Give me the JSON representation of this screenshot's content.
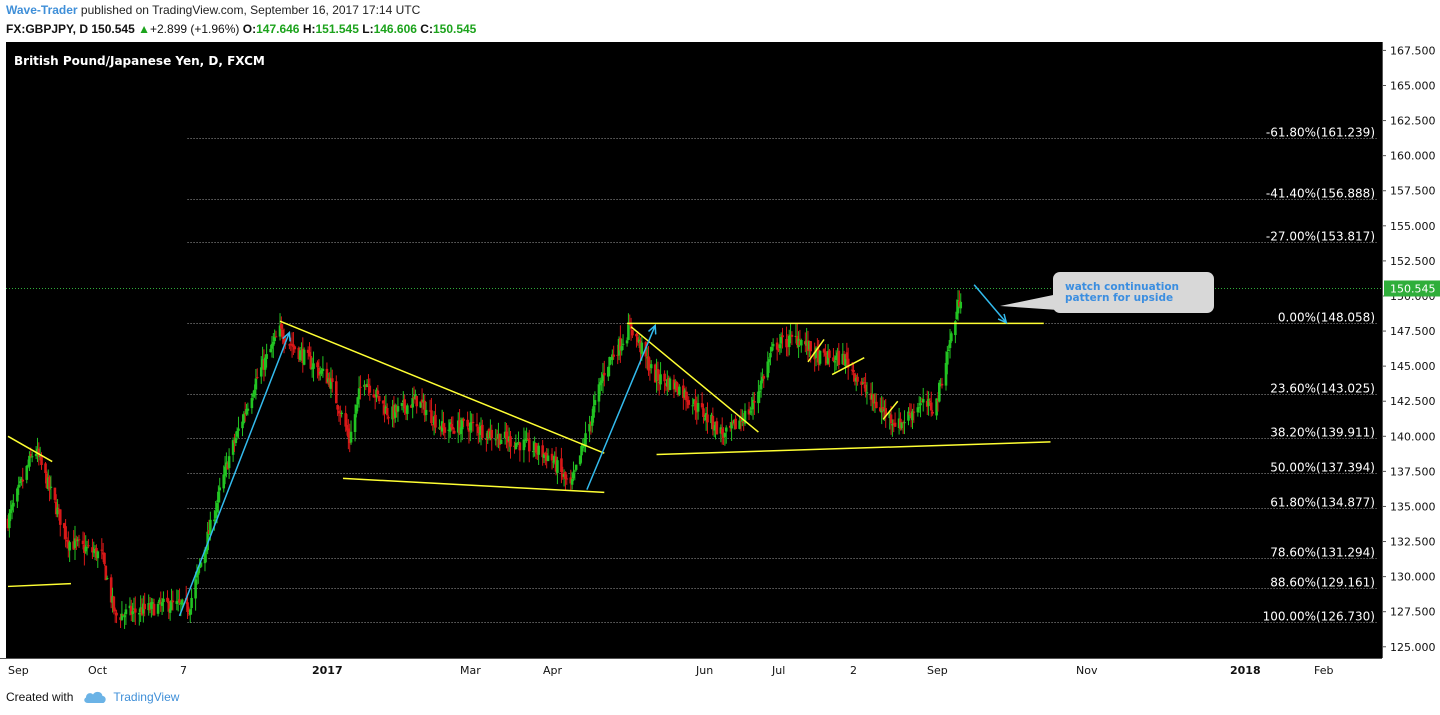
{
  "header": {
    "author": "Wave-Trader",
    "published_text": " published on TradingView.com, September 16, 2017 17:14 UTC",
    "symbol": "FX:GBPJPY, D",
    "last": "150.545",
    "change": "+2.899 (+1.96%)",
    "o_label": "O:",
    "o_value": "147.646",
    "h_label": "H:",
    "h_value": "151.545",
    "l_label": "L:",
    "l_value": "146.606",
    "c_label": "C:",
    "c_value": "150.545",
    "up_arrow_glyph": "▲"
  },
  "footer": {
    "created_with": "Created with",
    "brand": "TradingView"
  },
  "colors": {
    "background": "#000000",
    "up": "#22c322",
    "down": "#d81818",
    "trendline": "#ffff33",
    "arrow": "#33bbee",
    "fib_line": "#9a9a9a",
    "price_marker": "#2fae3a",
    "callout_bg": "#d8d8d8",
    "callout_text": "#3b8ee0"
  },
  "chart_data": {
    "type": "candlestick",
    "title": "British Pound/Japanese Yen, D, FXCM",
    "ylim": [
      124.2,
      168.1
    ],
    "y_ticks": [
      125,
      127.5,
      130,
      132.5,
      135,
      137.5,
      140,
      142.5,
      145,
      147.5,
      150,
      152.5,
      155,
      157.5,
      160,
      162.5,
      165,
      167.5
    ],
    "y_tick_labels": [
      "125.000",
      "127.500",
      "130.000",
      "132.500",
      "135.000",
      "137.500",
      "140.000",
      "142.500",
      "145.000",
      "147.500",
      "150.000",
      "152.500",
      "155.000",
      "157.500",
      "160.000",
      "162.500",
      "165.000",
      "167.500"
    ],
    "x_tick_labels": [
      "Sep",
      "Oct",
      "7",
      "2017",
      "Mar",
      "Apr",
      "Jun",
      "Jul",
      "2",
      "Sep",
      "Nov",
      "2018",
      "Feb"
    ],
    "current_price": 150.545,
    "current_price_label": "150.545",
    "fib_levels": [
      {
        "label": "-61.80%(161.239)",
        "value": 161.239
      },
      {
        "label": "-41.40%(156.888)",
        "value": 156.888
      },
      {
        "label": "-27.00%(153.817)",
        "value": 153.817
      },
      {
        "label": "0.00%(148.058)",
        "value": 148.058
      },
      {
        "label": "23.60%(143.025)",
        "value": 143.025
      },
      {
        "label": "38.20%(139.911)",
        "value": 139.911
      },
      {
        "label": "50.00%(137.394)",
        "value": 137.394
      },
      {
        "label": "61.80%(134.877)",
        "value": 134.877
      },
      {
        "label": "78.60%(131.294)",
        "value": 131.294
      },
      {
        "label": "88.60%(129.161)",
        "value": 129.161
      },
      {
        "label": "100.00%(126.730)",
        "value": 126.73
      }
    ],
    "anchors": [
      {
        "d": 0,
        "p": 134.0
      },
      {
        "d": 20,
        "p": 139.2
      },
      {
        "d": 45,
        "p": 132.5
      },
      {
        "d": 70,
        "p": 131.5
      },
      {
        "d": 80,
        "p": 127.2
      },
      {
        "d": 120,
        "p": 128.0
      },
      {
        "d": 135,
        "p": 127.8
      },
      {
        "d": 165,
        "p": 138.5
      },
      {
        "d": 185,
        "p": 144.0
      },
      {
        "d": 203,
        "p": 147.5
      },
      {
        "d": 215,
        "p": 146.2
      },
      {
        "d": 240,
        "p": 144.0
      },
      {
        "d": 255,
        "p": 139.8
      },
      {
        "d": 265,
        "p": 144.3
      },
      {
        "d": 285,
        "p": 141.5
      },
      {
        "d": 305,
        "p": 142.6
      },
      {
        "d": 325,
        "p": 140.5
      },
      {
        "d": 345,
        "p": 140.8
      },
      {
        "d": 365,
        "p": 140.0
      },
      {
        "d": 385,
        "p": 139.4
      },
      {
        "d": 405,
        "p": 138.5
      },
      {
        "d": 420,
        "p": 136.3
      },
      {
        "d": 432,
        "p": 140.2
      },
      {
        "d": 446,
        "p": 145.0
      },
      {
        "d": 465,
        "p": 147.8
      },
      {
        "d": 482,
        "p": 144.3
      },
      {
        "d": 500,
        "p": 143.5
      },
      {
        "d": 520,
        "p": 141.5
      },
      {
        "d": 535,
        "p": 140.0
      },
      {
        "d": 555,
        "p": 142.0
      },
      {
        "d": 572,
        "p": 146.5
      },
      {
        "d": 590,
        "p": 147.0
      },
      {
        "d": 605,
        "p": 145.6
      },
      {
        "d": 625,
        "p": 145.5
      },
      {
        "d": 645,
        "p": 142.5
      },
      {
        "d": 665,
        "p": 140.8
      },
      {
        "d": 680,
        "p": 142.3
      },
      {
        "d": 692,
        "p": 142.0
      },
      {
        "d": 705,
        "p": 147.6
      },
      {
        "d": 712,
        "p": 150.5
      }
    ],
    "annotation": "watch continuation\npattern for upside"
  }
}
